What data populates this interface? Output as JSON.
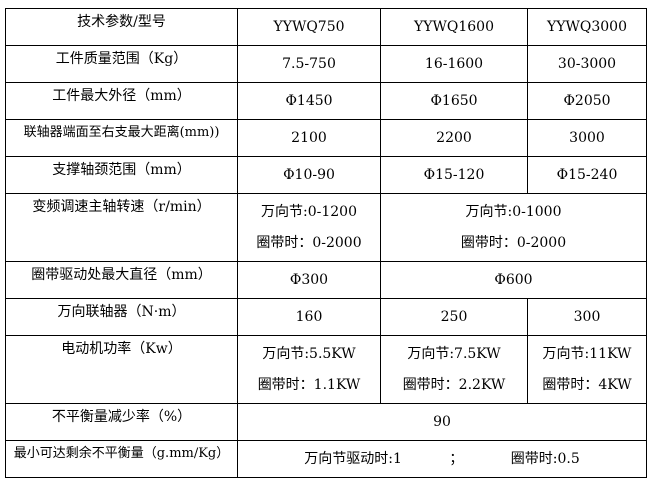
{
  "header": {
    "label": "技术参数/型号",
    "models": [
      "YYWQ750",
      "YYWQ1600",
      "YYWQ3000"
    ]
  },
  "rows": [
    {
      "label": "工件质量范围（Kg）",
      "values": [
        "7.5-750",
        "16-1600",
        "30-3000"
      ]
    },
    {
      "label": "工件最大外径（mm）",
      "values": [
        "Φ1450",
        "Φ1650",
        "Φ2050"
      ]
    },
    {
      "label": "联轴器端面至右支最大距离(mm))",
      "values": [
        "2100",
        "2200",
        "3000"
      ]
    },
    {
      "label": "支撑轴颈范围（mm）",
      "values": [
        "Φ10-90",
        "Φ15-120",
        "Φ15-240"
      ]
    }
  ],
  "speed": {
    "label": "变频调速主轴转速（r/min）",
    "c1": [
      "万向节:0-1200",
      "圈带时：0-2000"
    ],
    "c23": [
      "万向节:0-1000",
      "圈带时：0-2000"
    ]
  },
  "belt_diameter": {
    "label": "圈带驱动处最大直径（mm）",
    "c1": "Φ300",
    "c23": "Φ600"
  },
  "coupling": {
    "label": "万向联轴器（N·m）",
    "values": [
      "160",
      "250",
      "300"
    ]
  },
  "power": {
    "label": "电动机功率（Kw）",
    "values": [
      [
        "万向节:5.5KW",
        "圈带时：1.1KW"
      ],
      [
        "万向节:7.5KW",
        "圈带时：2.2KW"
      ],
      [
        "万向节:11KW",
        "圈带时：4KW"
      ]
    ]
  },
  "reduction": {
    "label": "不平衡量减少率（%）",
    "value": "90"
  },
  "residual": {
    "label": "最小可达剩余不平衡量（g.mm/Kg）",
    "part1": "万向节驱动时:1",
    "sep": "；",
    "part2": "圈带时:0.5"
  }
}
